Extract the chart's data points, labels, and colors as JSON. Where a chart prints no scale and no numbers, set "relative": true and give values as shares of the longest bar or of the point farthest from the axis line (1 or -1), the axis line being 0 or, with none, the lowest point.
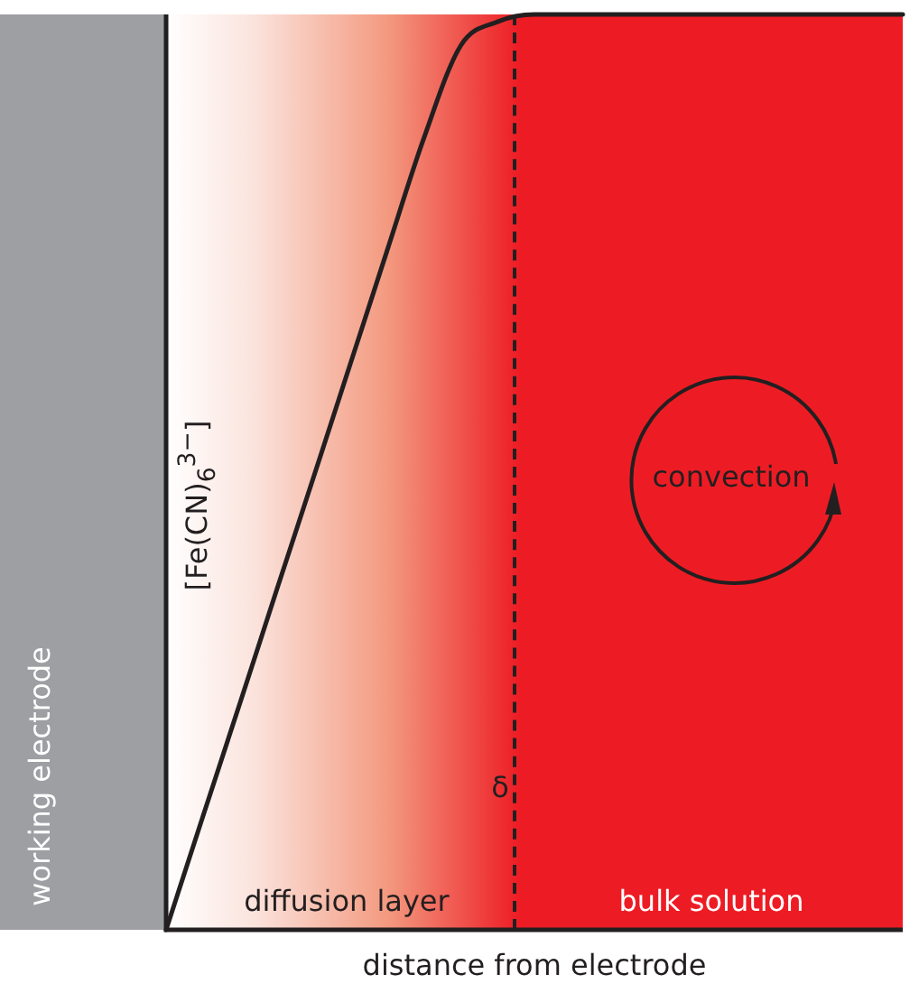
{
  "chart_data": {
    "type": "line",
    "relative": true,
    "xlabel": "distance from electrode",
    "ylabel": "[Fe(CN)$_{6}$$^{3−}$]",
    "legend": false,
    "marker": "none",
    "line_style": "solid",
    "categories": [
      null,
      null,
      null,
      null,
      null,
      null,
      null,
      null,
      null,
      null,
      null,
      null,
      null,
      null,
      null,
      null,
      null,
      null,
      null,
      null,
      null
    ],
    "series": [
      {
        "color": "#231f20",
        "values": [
          0,
          0.124,
          0.247,
          0.371,
          0.494,
          0.618,
          0.742,
          0.865,
          0.966,
          0.992,
          1,
          1,
          1,
          1,
          1,
          1,
          1,
          1,
          1,
          1,
          1
        ]
      }
    ],
    "annotations": [
      "working electrode",
      "convection",
      "δ",
      "diffusion layer",
      "bulk solution"
    ]
  }
}
